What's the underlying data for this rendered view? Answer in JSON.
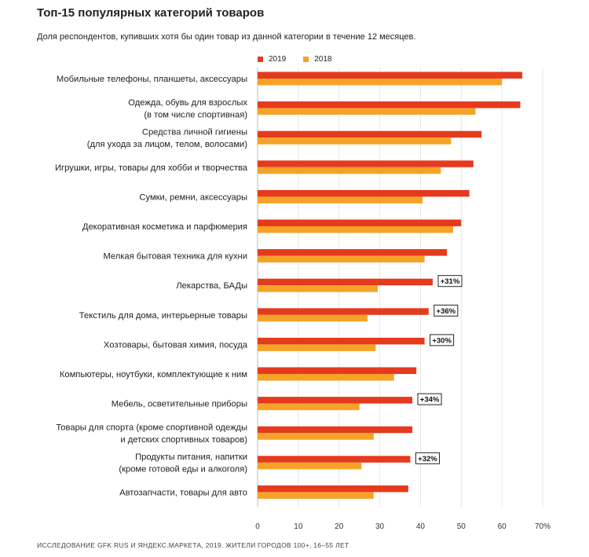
{
  "title": "Топ-15 популярных категорий товаров",
  "subtitle": "Доля респондентов, купивших хотя бы один товар из данной категории в течение 12 месяцев.",
  "source": "ИССЛЕДОВАНИЕ GFK RUS И ЯНДЕКС.МАРКЕТА, 2019. ЖИТЕЛИ ГОРОДОВ 100+, 16–55 ЛЕТ",
  "colors": {
    "2019": "#e63a1e",
    "2018": "#f5a328"
  },
  "chart_data": {
    "type": "bar",
    "orientation": "horizontal",
    "categories": [
      [
        "Мобильные телефоны, планшеты, аксессуары"
      ],
      [
        "Одежда, обувь для взрослых",
        "(в том числе спортивная)"
      ],
      [
        "Средства личной гигиены",
        "(для ухода за лицом, телом, волосами)"
      ],
      [
        "Игрушки, игры, товары для хобби и творчества"
      ],
      [
        "Сумки, ремни, аксессуары"
      ],
      [
        "Декоративная косметика и парфюмерия"
      ],
      [
        "Мелкая бытовая техника для кухни"
      ],
      [
        "Лекарства, БАДы"
      ],
      [
        "Текстиль для дома, интерьерные товары"
      ],
      [
        "Хозтовары, бытовая химия, посуда"
      ],
      [
        "Компьютеры, ноутбуки, комплектующие к ним"
      ],
      [
        "Мебель, осветительные приборы"
      ],
      [
        "Товары для спорта (кроме спортивной одежды",
        "и детских спортивных товаров)"
      ],
      [
        "Продукты питания, напитки",
        "(кроме готовой еды и алкоголя)"
      ],
      [
        "Автозапчасти, товары для авто"
      ]
    ],
    "series": [
      {
        "name": "2019",
        "values": [
          65,
          64.5,
          55,
          53,
          52,
          50,
          46.5,
          43,
          42,
          41,
          39,
          38,
          38,
          37.5,
          37
        ]
      },
      {
        "name": "2018",
        "values": [
          60,
          53.5,
          47.5,
          45,
          40.5,
          48,
          41,
          29.5,
          27,
          29,
          33.5,
          25,
          28.5,
          25.5,
          28.5
        ]
      }
    ],
    "annotations": [
      "",
      "",
      "",
      "",
      "",
      "",
      "",
      "+31%",
      "+36%",
      "+30%",
      "",
      "+34%",
      "",
      "+32%",
      ""
    ],
    "xlim": [
      0,
      70
    ],
    "xticks": [
      "0",
      "10",
      "20",
      "30",
      "40",
      "50",
      "60",
      "70%"
    ],
    "grid": true,
    "legend": "top"
  }
}
